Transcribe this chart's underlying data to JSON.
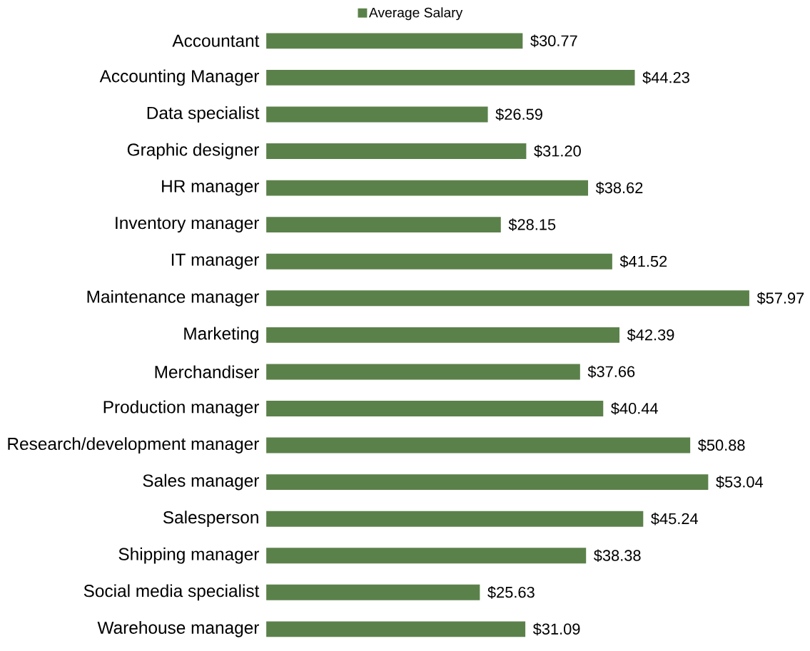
{
  "chart_data": {
    "type": "bar",
    "orientation": "horizontal",
    "legend": "top",
    "categories": [
      "Accountant",
      "Accounting Manager",
      "Data specialist",
      "Graphic designer",
      "HR manager",
      "Inventory manager",
      "IT manager",
      "Maintenance manager",
      "Marketing",
      "Merchandiser",
      "Production manager",
      "Research/development manager",
      "Sales manager",
      "Salesperson",
      "Shipping manager",
      "Social media specialist",
      "Warehouse manager"
    ],
    "series": [
      {
        "name": "Average Salary",
        "color": "#5b814a",
        "values": [
          30.77,
          44.23,
          26.59,
          31.2,
          38.62,
          28.15,
          41.52,
          57.97,
          42.39,
          37.66,
          40.44,
          50.88,
          53.04,
          45.24,
          38.38,
          25.63,
          31.09
        ],
        "value_labels": [
          "$30.77",
          "$44.23",
          "$26.59",
          "$31.20",
          "$38.62",
          "$28.15",
          "$41.52",
          "$57.97",
          "$42.39",
          "$37.66",
          "$40.44",
          "$50.88",
          "$53.04",
          "$45.24",
          "$38.38",
          "$25.63",
          "$31.09"
        ]
      }
    ]
  }
}
